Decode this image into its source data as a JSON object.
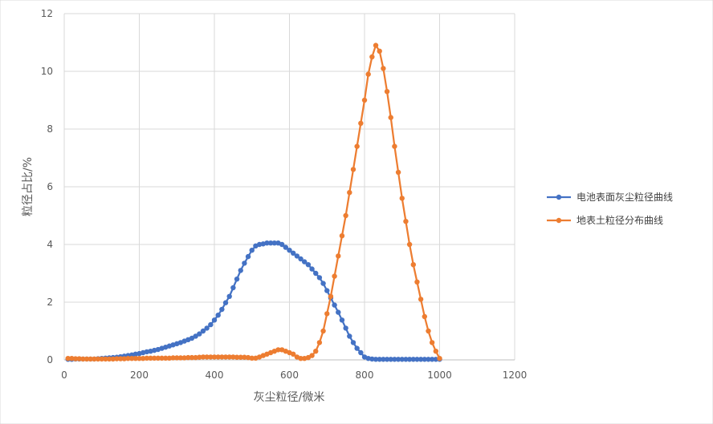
{
  "chart_data": {
    "type": "scatter",
    "xlabel": "灰尘粒径/微米",
    "ylabel": "粒径占比/%",
    "xlim": [
      0,
      1200
    ],
    "ylim": [
      0,
      12
    ],
    "x_ticks": [
      "0",
      "200",
      "400",
      "600",
      "800",
      "1000",
      "1200"
    ],
    "y_ticks": [
      "0",
      "2",
      "4",
      "6",
      "8",
      "10",
      "12"
    ],
    "grid": true,
    "legend": "right",
    "series": [
      {
        "name": "电池表面灰尘粒径曲线",
        "color": "#4472C4",
        "x": [
          10,
          20,
          30,
          40,
          50,
          60,
          70,
          80,
          90,
          100,
          110,
          120,
          130,
          140,
          150,
          160,
          170,
          180,
          190,
          200,
          210,
          220,
          230,
          240,
          250,
          260,
          270,
          280,
          290,
          300,
          310,
          320,
          330,
          340,
          350,
          360,
          370,
          380,
          390,
          400,
          410,
          420,
          430,
          440,
          450,
          460,
          470,
          480,
          490,
          500,
          510,
          520,
          530,
          540,
          550,
          560,
          570,
          580,
          590,
          600,
          610,
          620,
          630,
          640,
          650,
          660,
          670,
          680,
          690,
          700,
          710,
          720,
          730,
          740,
          750,
          760,
          770,
          780,
          790,
          800,
          810,
          820,
          830,
          840,
          850,
          860,
          870,
          880,
          890,
          900,
          910,
          920,
          930,
          940,
          950,
          960,
          970,
          980,
          990,
          1000
        ],
        "y": [
          0.02,
          0.02,
          0.03,
          0.03,
          0.03,
          0.03,
          0.03,
          0.03,
          0.04,
          0.05,
          0.06,
          0.07,
          0.08,
          0.09,
          0.11,
          0.13,
          0.15,
          0.17,
          0.2,
          0.22,
          0.25,
          0.28,
          0.3,
          0.33,
          0.36,
          0.4,
          0.44,
          0.48,
          0.52,
          0.56,
          0.6,
          0.65,
          0.7,
          0.75,
          0.82,
          0.9,
          1.0,
          1.1,
          1.22,
          1.38,
          1.55,
          1.75,
          1.98,
          2.2,
          2.5,
          2.8,
          3.1,
          3.35,
          3.58,
          3.8,
          3.95,
          4.0,
          4.02,
          4.05,
          4.05,
          4.05,
          4.05,
          4.0,
          3.9,
          3.8,
          3.7,
          3.6,
          3.5,
          3.4,
          3.3,
          3.15,
          3.0,
          2.85,
          2.65,
          2.4,
          2.15,
          1.9,
          1.65,
          1.38,
          1.1,
          0.82,
          0.6,
          0.4,
          0.25,
          0.1,
          0.05,
          0.03,
          0.02,
          0.02,
          0.02,
          0.02,
          0.02,
          0.02,
          0.02,
          0.02,
          0.02,
          0.02,
          0.02,
          0.02,
          0.02,
          0.02,
          0.02,
          0.02,
          0.02,
          0.02
        ]
      },
      {
        "name": "地表土粒径分布曲线",
        "color": "#ED7D31",
        "x": [
          10,
          20,
          30,
          40,
          50,
          60,
          70,
          80,
          90,
          100,
          110,
          120,
          130,
          140,
          150,
          160,
          170,
          180,
          190,
          200,
          210,
          220,
          230,
          240,
          250,
          260,
          270,
          280,
          290,
          300,
          310,
          320,
          330,
          340,
          350,
          360,
          370,
          380,
          390,
          400,
          410,
          420,
          430,
          440,
          450,
          460,
          470,
          480,
          490,
          500,
          510,
          520,
          530,
          540,
          550,
          560,
          570,
          580,
          590,
          600,
          610,
          620,
          630,
          640,
          650,
          660,
          670,
          680,
          690,
          700,
          710,
          720,
          730,
          740,
          750,
          760,
          770,
          780,
          790,
          800,
          810,
          820,
          830,
          840,
          850,
          860,
          870,
          880,
          890,
          900,
          910,
          920,
          930,
          940,
          950,
          960,
          970,
          980,
          990,
          1000
        ],
        "y": [
          0.05,
          0.05,
          0.04,
          0.04,
          0.03,
          0.03,
          0.03,
          0.03,
          0.03,
          0.03,
          0.03,
          0.03,
          0.03,
          0.04,
          0.04,
          0.04,
          0.05,
          0.05,
          0.05,
          0.05,
          0.05,
          0.06,
          0.06,
          0.06,
          0.06,
          0.06,
          0.06,
          0.06,
          0.07,
          0.07,
          0.07,
          0.07,
          0.08,
          0.08,
          0.08,
          0.09,
          0.1,
          0.1,
          0.1,
          0.1,
          0.1,
          0.1,
          0.1,
          0.1,
          0.1,
          0.09,
          0.09,
          0.09,
          0.08,
          0.06,
          0.06,
          0.1,
          0.15,
          0.2,
          0.25,
          0.3,
          0.35,
          0.35,
          0.3,
          0.25,
          0.2,
          0.1,
          0.05,
          0.05,
          0.08,
          0.15,
          0.3,
          0.6,
          1.0,
          1.6,
          2.2,
          2.9,
          3.6,
          4.3,
          5.0,
          5.8,
          6.6,
          7.4,
          8.2,
          9.0,
          9.9,
          10.5,
          10.9,
          10.7,
          10.1,
          9.3,
          8.4,
          7.4,
          6.5,
          5.6,
          4.8,
          4.0,
          3.3,
          2.7,
          2.1,
          1.5,
          1.0,
          0.6,
          0.3,
          0.05
        ]
      }
    ]
  }
}
